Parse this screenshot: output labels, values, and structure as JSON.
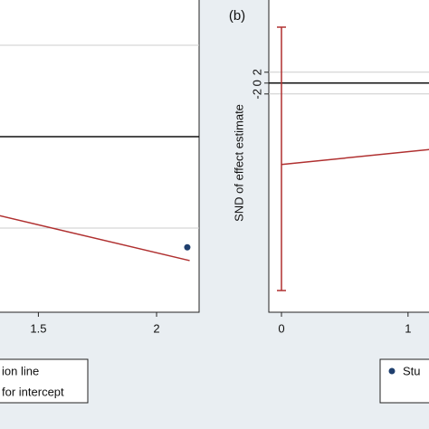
{
  "chart_data": [
    {
      "type": "scatter",
      "xlim": [
        1.33,
        2.18
      ],
      "ylim": [
        -3.84,
        2.99
      ],
      "xticks": [
        1.5,
        2
      ],
      "reference_lines": [
        2,
        0,
        -2
      ],
      "fit_line": {
        "x": [
          1.33,
          2.14
        ],
        "y": [
          -1.72,
          -2.71
        ],
        "color": "#b03030"
      },
      "series": [
        {
          "color": "#1f3f6e",
          "x": [
            2.13
          ],
          "values": [
            -2.42
          ]
        }
      ],
      "legend": [
        "ion line",
        "for intercept"
      ]
    },
    {
      "type": "scatter",
      "label": "(b)",
      "ylabel": "SND of effect estimate",
      "xlim": [
        -0.1,
        1.18
      ],
      "ylim": [
        -42.2,
        15.3
      ],
      "xticks": [
        0,
        1
      ],
      "yticks": [
        -2,
        0,
        2
      ],
      "reference_lines": [
        2,
        0,
        -2
      ],
      "ci_line": {
        "x": 0,
        "y": [
          -38.2,
          10.3
        ],
        "color": "#b03030"
      },
      "fit_line": {
        "x": [
          0,
          1.18
        ],
        "y": [
          -15,
          -12.2
        ],
        "color": "#b03030"
      },
      "legend": [
        "Stu"
      ],
      "legend_color": "#1f3f6e"
    }
  ]
}
